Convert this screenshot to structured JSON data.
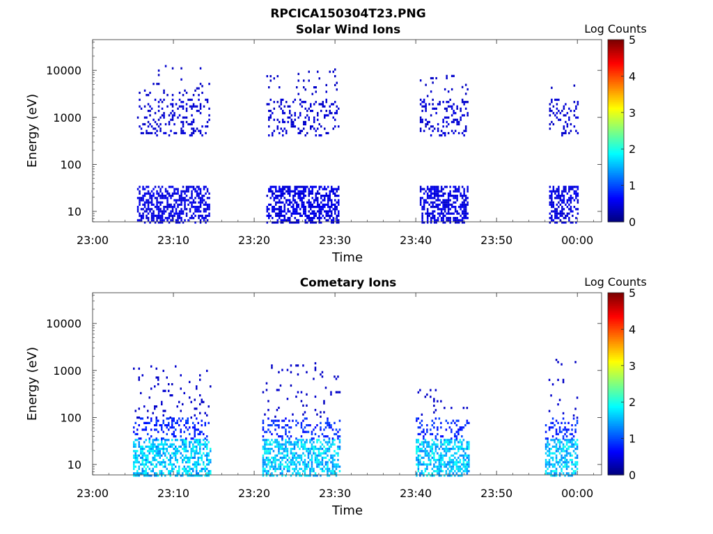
{
  "figure": {
    "title": "RPCICA150304T23.PNG"
  },
  "chart_data": [
    {
      "type": "heatmap",
      "title": "Solar Wind Ions",
      "xlabel": "Time",
      "ylabel": "Energy (eV)",
      "x_ticks": [
        "23:00",
        "23:10",
        "23:20",
        "23:30",
        "23:40",
        "23:50",
        "00:00"
      ],
      "x_range_minutes": [
        0,
        63
      ],
      "y_scale": "log",
      "y_ticks": [
        10,
        100,
        1000,
        10000
      ],
      "ylim": [
        6,
        45000
      ],
      "colorbar": {
        "label": "Log Counts",
        "range": [
          0,
          5
        ],
        "ticks": [
          0,
          1,
          2,
          3,
          4,
          5
        ]
      },
      "colormap": "jet",
      "grid": false,
      "bursts": [
        {
          "start_min": 5.5,
          "end_min": 14.5,
          "low_band": [
            6,
            35
          ],
          "low_log": [
            0.35,
            0.6
          ],
          "mid_band": [
            400,
            2500
          ],
          "mid_log": [
            0.3,
            0.5
          ],
          "high_band": [
            3000,
            13000
          ],
          "high_log": [
            0.3,
            0.4
          ]
        },
        {
          "start_min": 21.5,
          "end_min": 30.5,
          "low_band": [
            6,
            35
          ],
          "low_log": [
            0.35,
            0.6
          ],
          "mid_band": [
            400,
            2500
          ],
          "mid_log": [
            0.3,
            0.5
          ],
          "high_band": [
            3000,
            11000
          ],
          "high_log": [
            0.3,
            0.4
          ]
        },
        {
          "start_min": 40.5,
          "end_min": 46.5,
          "low_band": [
            6,
            35
          ],
          "low_log": [
            0.35,
            0.6
          ],
          "mid_band": [
            400,
            2500
          ],
          "mid_log": [
            0.3,
            0.5
          ],
          "high_band": [
            3000,
            8000
          ],
          "high_log": [
            0.3,
            0.4
          ]
        },
        {
          "start_min": 56.5,
          "end_min": 60,
          "low_band": [
            6,
            35
          ],
          "low_log": [
            0.35,
            0.6
          ],
          "mid_band": [
            400,
            2500
          ],
          "mid_log": [
            0.3,
            0.5
          ],
          "high_band": [
            3000,
            5000
          ],
          "high_log": [
            0.3,
            0.4
          ]
        }
      ]
    },
    {
      "type": "heatmap",
      "title": "Cometary Ions",
      "xlabel": "Time",
      "ylabel": "Energy (eV)",
      "x_ticks": [
        "23:00",
        "23:10",
        "23:20",
        "23:30",
        "23:40",
        "23:50",
        "00:00"
      ],
      "x_range_minutes": [
        0,
        63
      ],
      "y_scale": "log",
      "y_ticks": [
        10,
        100,
        1000,
        10000
      ],
      "ylim": [
        6,
        45000
      ],
      "colorbar": {
        "label": "Log Counts",
        "range": [
          0,
          5
        ],
        "ticks": [
          0,
          1,
          2,
          3,
          4,
          5
        ]
      },
      "colormap": "jet",
      "grid": false,
      "bursts": [
        {
          "start_min": 5,
          "end_min": 14.5,
          "low_band": [
            6,
            35
          ],
          "low_log": [
            1.2,
            2.0
          ],
          "mid_band": [
            35,
            100
          ],
          "mid_log": [
            0.6,
            1.0
          ],
          "high_band": [
            100,
            1600
          ],
          "high_log": [
            0.3,
            0.4
          ]
        },
        {
          "start_min": 21,
          "end_min": 30.5,
          "low_band": [
            6,
            35
          ],
          "low_log": [
            1.2,
            2.0
          ],
          "mid_band": [
            35,
            100
          ],
          "mid_log": [
            0.6,
            1.0
          ],
          "high_band": [
            100,
            1500
          ],
          "high_log": [
            0.3,
            0.4
          ]
        },
        {
          "start_min": 40,
          "end_min": 46.5,
          "low_band": [
            6,
            35
          ],
          "low_log": [
            1.2,
            2.0
          ],
          "mid_band": [
            35,
            100
          ],
          "mid_log": [
            0.6,
            1.0
          ],
          "high_band": [
            100,
            500
          ],
          "high_log": [
            0.3,
            0.4
          ]
        },
        {
          "start_min": 56,
          "end_min": 60,
          "low_band": [
            6,
            35
          ],
          "low_log": [
            1.2,
            2.0
          ],
          "mid_band": [
            35,
            100
          ],
          "mid_log": [
            0.6,
            1.0
          ],
          "high_band": [
            100,
            2200
          ],
          "high_log": [
            0.3,
            0.4
          ]
        }
      ]
    }
  ]
}
